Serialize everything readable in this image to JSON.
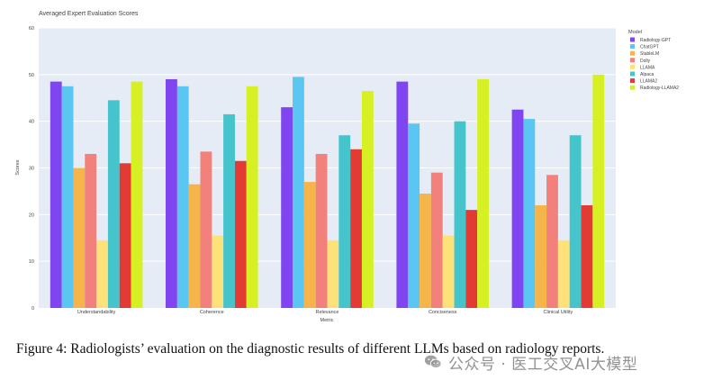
{
  "chart_data": {
    "type": "bar",
    "title": "Averaged Expert Evaluation Scores",
    "xlabel": "Metric",
    "ylabel": "Scores",
    "ylim": [
      0,
      60
    ],
    "yticks": [
      "0",
      "10",
      "20",
      "30",
      "40",
      "50",
      "60"
    ],
    "grid": true,
    "legend_title": "Model",
    "legend_position": "right",
    "categories": [
      "Understandability",
      "Coherence",
      "Relevance",
      "Conciseness",
      "Clinical Utility"
    ],
    "series": [
      {
        "name": "Radiology-GPT",
        "color": "#7e45f0",
        "values": [
          48.5,
          49,
          43,
          48.5,
          42.5
        ]
      },
      {
        "name": "ChatGPT",
        "color": "#5bc6f2",
        "values": [
          47.5,
          47.5,
          49.5,
          39.5,
          40.5
        ]
      },
      {
        "name": "StableLM",
        "color": "#f5b54a",
        "values": [
          30,
          26.5,
          27,
          24.5,
          22
        ]
      },
      {
        "name": "Dolly",
        "color": "#f2817c",
        "values": [
          33,
          33.5,
          33,
          29,
          28.5
        ]
      },
      {
        "name": "LLAMA",
        "color": "#fde27a",
        "values": [
          14.5,
          15.5,
          14.5,
          15.5,
          14.5
        ]
      },
      {
        "name": "Alpaca",
        "color": "#46c4cc",
        "values": [
          44.5,
          41.5,
          37,
          40,
          37
        ]
      },
      {
        "name": "LLAMA2",
        "color": "#e23b34",
        "values": [
          31,
          31.5,
          34,
          21,
          22
        ]
      },
      {
        "name": "Radiology-LLAMA2",
        "color": "#d6f024",
        "values": [
          48.5,
          47.5,
          46.5,
          49,
          50
        ]
      }
    ]
  },
  "caption": "Figure 4: Radiologists’ evaluation on the diagnostic results of different LLMs based on radiology reports.",
  "watermark": {
    "text": "公众号 · 医工交叉AI大模型",
    "icon": "wechat-icon"
  }
}
